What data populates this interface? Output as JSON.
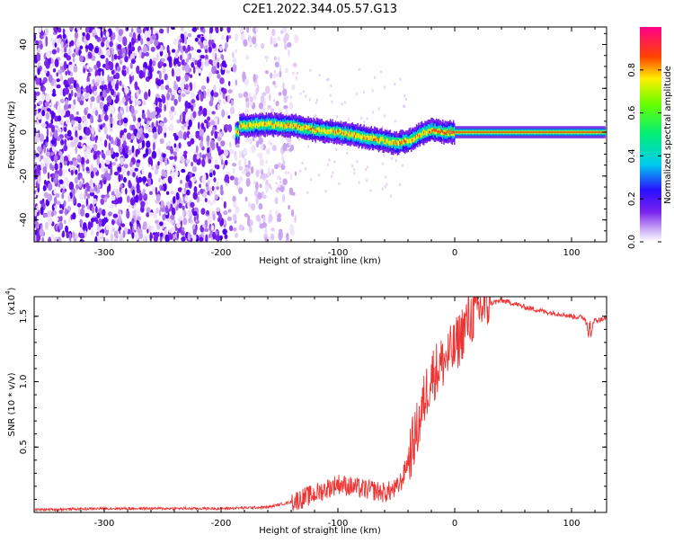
{
  "title": "C2E1.2022.344.05.57.G13",
  "colors": {
    "snr_line": "#ee3333",
    "axis": "#000000"
  },
  "chart_data": [
    {
      "type": "heatmap",
      "xlabel": "Height of straight line (km)",
      "ylabel": "Frequency (Hz)",
      "xlim": [
        -360,
        130
      ],
      "ylim": [
        -50,
        48
      ],
      "xticks": [
        -300,
        -200,
        -100,
        0,
        100
      ],
      "yticks": [
        -40,
        -20,
        0,
        20,
        40
      ],
      "colorbar": {
        "label": "Normalized spectral amplitude",
        "range": [
          0,
          1
        ],
        "ticks": [
          "0.0",
          "0.2",
          "0.4",
          "0.6",
          "0.8"
        ],
        "colormap": "rainbow (white-violet-blue-cyan-green-yellow-red-magenta)"
      },
      "ridge": {
        "description_points_height_km": [
          -185,
          -160,
          -140,
          -120,
          -100,
          -80,
          -60,
          -50,
          -40,
          -30,
          -20,
          -10,
          0,
          50,
          130
        ],
        "center_freq_hz": [
          3,
          3.5,
          3,
          1,
          0,
          -2,
          -4,
          -5,
          -4,
          -1,
          1,
          0,
          0,
          0,
          0
        ]
      },
      "noise_region_height_km": [
        -360,
        -160
      ]
    },
    {
      "type": "line",
      "xlabel": "Height of straight line (km)",
      "ylabel": "SNR (10 * v/v)",
      "y_multiplier": "(x10^4)",
      "y_multiplier_base": "(x10",
      "y_multiplier_exp": "4",
      "y_multiplier_close": ")",
      "xlim": [
        -360,
        130
      ],
      "ylim": [
        0,
        1.65
      ],
      "xticks": [
        -300,
        -200,
        -100,
        0,
        100
      ],
      "yticks": [
        "0.5",
        "1.0",
        "1.5"
      ],
      "series": [
        {
          "x": [
            -360,
            -300,
            -250,
            -200,
            -160,
            -140,
            -120,
            -110,
            -100,
            -90,
            -80,
            -70,
            -60,
            -50,
            -45,
            -40,
            -35,
            -30,
            -25,
            -20,
            -15,
            -10,
            -5,
            0,
            5,
            10,
            20,
            30,
            40,
            50,
            60,
            70,
            80,
            90,
            100,
            110,
            115,
            120,
            130
          ],
          "y": [
            0.02,
            0.03,
            0.03,
            0.03,
            0.04,
            0.08,
            0.14,
            0.18,
            0.22,
            0.2,
            0.18,
            0.17,
            0.15,
            0.18,
            0.25,
            0.4,
            0.55,
            0.7,
            0.9,
            1.05,
            1.1,
            1.15,
            1.2,
            1.25,
            1.35,
            1.45,
            1.55,
            1.6,
            1.62,
            1.6,
            1.57,
            1.55,
            1.53,
            1.52,
            1.5,
            1.49,
            1.45,
            1.47,
            1.48
          ]
        }
      ]
    }
  ]
}
